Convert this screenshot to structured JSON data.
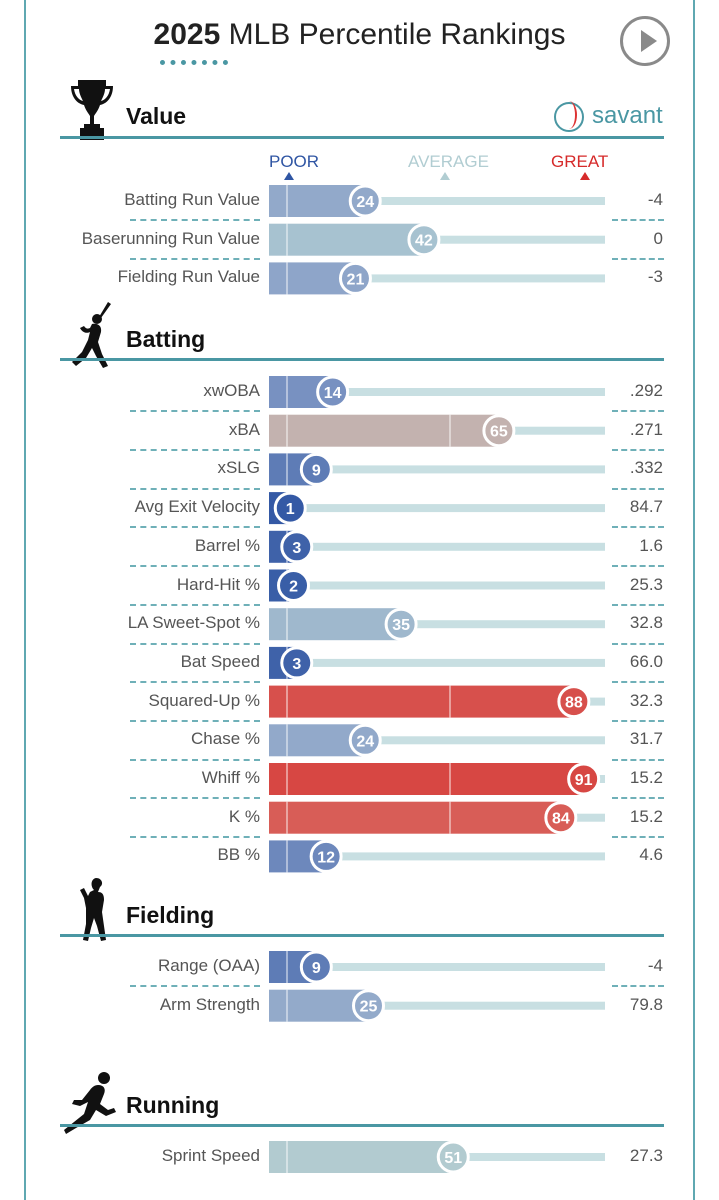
{
  "header": {
    "title_bold": "2025",
    "title_rest": " MLB Percentile Rankings",
    "play_icon": "play-icon"
  },
  "brand": {
    "logo_text": "savant",
    "logo_icon": "baseball-icon"
  },
  "legend": {
    "poor": "POOR",
    "average": "AVERAGE",
    "great": "GREAT"
  },
  "colors": {
    "accent": "#4a97a3",
    "poor": "#2f55a3",
    "average": "#b1cdd2",
    "great": "#d62a2a",
    "track": "#c8dfe2"
  },
  "sections": {
    "value": {
      "title": "Value",
      "icon": "trophy-icon"
    },
    "batting": {
      "title": "Batting",
      "icon": "batter-icon"
    },
    "fielding": {
      "title": "Fielding",
      "icon": "fielder-icon"
    },
    "running": {
      "title": "Running",
      "icon": "runner-icon"
    }
  },
  "chart_data": {
    "type": "bar",
    "title": "2025 MLB Percentile Rankings",
    "xlim": [
      0,
      100
    ],
    "groups": [
      {
        "section": "Value",
        "metrics": [
          {
            "label": "Batting Run Value",
            "percentile": 24,
            "value": "-4"
          },
          {
            "label": "Baserunning Run Value",
            "percentile": 42,
            "value": "0"
          },
          {
            "label": "Fielding Run Value",
            "percentile": 21,
            "value": "-3"
          }
        ]
      },
      {
        "section": "Batting",
        "metrics": [
          {
            "label": "xwOBA",
            "percentile": 14,
            "value": ".292"
          },
          {
            "label": "xBA",
            "percentile": 65,
            "value": ".271"
          },
          {
            "label": "xSLG",
            "percentile": 9,
            "value": ".332"
          },
          {
            "label": "Avg Exit Velocity",
            "percentile": 1,
            "value": "84.7"
          },
          {
            "label": "Barrel %",
            "percentile": 3,
            "value": "1.6"
          },
          {
            "label": "Hard-Hit %",
            "percentile": 2,
            "value": "25.3"
          },
          {
            "label": "LA Sweet-Spot %",
            "percentile": 35,
            "value": "32.8"
          },
          {
            "label": "Bat Speed",
            "percentile": 3,
            "value": "66.0"
          },
          {
            "label": "Squared-Up %",
            "percentile": 88,
            "value": "32.3"
          },
          {
            "label": "Chase %",
            "percentile": 24,
            "value": "31.7"
          },
          {
            "label": "Whiff %",
            "percentile": 91,
            "value": "15.2"
          },
          {
            "label": "K %",
            "percentile": 84,
            "value": "15.2"
          },
          {
            "label": "BB %",
            "percentile": 12,
            "value": "4.6"
          }
        ]
      },
      {
        "section": "Fielding",
        "metrics": [
          {
            "label": "Range (OAA)",
            "percentile": 9,
            "value": "-4"
          },
          {
            "label": "Arm Strength",
            "percentile": 25,
            "value": "79.8"
          }
        ]
      },
      {
        "section": "Running",
        "metrics": [
          {
            "label": "Sprint Speed",
            "percentile": 51,
            "value": "27.3"
          }
        ]
      }
    ]
  }
}
